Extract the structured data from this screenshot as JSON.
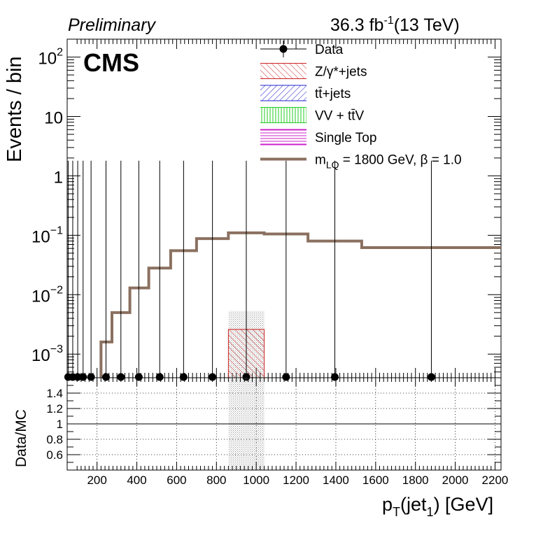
{
  "header": {
    "preliminary": "Preliminary",
    "lumi": "36.3 fb",
    "lumi_exp": "-1",
    "energy": "(13 TeV)",
    "cms": "CMS"
  },
  "chart_data": {
    "type": "histogram",
    "ylabel": "Events / bin",
    "ratio_ylabel": "Data/MC",
    "xlabel_parts": {
      "p": "p",
      "p_sub": "T",
      "open": "(jet",
      "jet_sub": "1",
      "close": ") [GeV]"
    },
    "xlim": [
      50,
      2230
    ],
    "ylim": [
      0.0004,
      200
    ],
    "yscale": "log",
    "ratio_ylim": [
      0.4,
      1.6
    ],
    "x_ticks": [
      200,
      400,
      600,
      800,
      1000,
      1200,
      1400,
      1600,
      1800,
      2000,
      2200
    ],
    "ratio_ticks": [
      0.6,
      0.8,
      1,
      1.2,
      1.4
    ],
    "ratio_tick_labels": [
      "0.6",
      "0.8",
      "1",
      "1.2",
      "1.4"
    ],
    "y_tick_labels": [
      {
        "value": 100,
        "base": "10",
        "exp": "2"
      },
      {
        "value": 10,
        "base": "10",
        "exp": ""
      },
      {
        "value": 1,
        "base": "1",
        "exp": ""
      },
      {
        "value": 0.1,
        "base": "10",
        "exp": "−1"
      },
      {
        "value": 0.01,
        "base": "10",
        "exp": "−2"
      },
      {
        "value": 0.001,
        "base": "10",
        "exp": "−3"
      }
    ],
    "legend": {
      "placement": "top-right",
      "entries": [
        {
          "label": "Data",
          "style": "marker"
        },
        {
          "label": "Z/γ*+jets",
          "style": "hatch",
          "color": "#cc2222"
        },
        {
          "label": "tt̄+jets",
          "style": "hatch",
          "color": "#2222cc"
        },
        {
          "label": "VV + tt̄V",
          "style": "hatch",
          "color": "#22cc22"
        },
        {
          "label": "Single Top",
          "style": "hatch",
          "color": "#cc22cc"
        },
        {
          "label": "m",
          "label_sub": "LQ",
          "label_rest": " = 1800 GeV,  β = 1.0",
          "style": "line",
          "color": "#8b7060"
        }
      ]
    },
    "signal": {
      "name": "m_LQ = 1800 GeV, β = 1.0",
      "color": "#8b7060",
      "bins": [
        {
          "x0": 220,
          "x1": 275,
          "y": 0.0016
        },
        {
          "x0": 275,
          "x1": 365,
          "y": 0.005
        },
        {
          "x0": 365,
          "x1": 460,
          "y": 0.013
        },
        {
          "x0": 460,
          "x1": 570,
          "y": 0.028
        },
        {
          "x0": 570,
          "x1": 700,
          "y": 0.055
        },
        {
          "x0": 700,
          "x1": 860,
          "y": 0.088
        },
        {
          "x0": 860,
          "x1": 1040,
          "y": 0.11
        },
        {
          "x0": 1040,
          "x1": 1260,
          "y": 0.105
        },
        {
          "x0": 1260,
          "x1": 1530,
          "y": 0.08
        },
        {
          "x0": 1530,
          "x1": 2230,
          "y": 0.062
        }
      ]
    },
    "background": {
      "name": "Z/γ*+jets",
      "color": "#cc2222",
      "bins": [
        {
          "x0": 860,
          "x1": 1040,
          "y": 0.0026,
          "unc_hi": 0.0053
        }
      ]
    },
    "data": {
      "points": [
        {
          "x": 55,
          "y": 0
        },
        {
          "x": 78,
          "y": 0
        },
        {
          "x": 103,
          "y": 0
        },
        {
          "x": 130,
          "y": 0
        },
        {
          "x": 170,
          "y": 0
        },
        {
          "x": 245,
          "y": 0
        },
        {
          "x": 320,
          "y": 0
        },
        {
          "x": 410,
          "y": 0
        },
        {
          "x": 515,
          "y": 0
        },
        {
          "x": 635,
          "y": 0
        },
        {
          "x": 780,
          "y": 0
        },
        {
          "x": 950,
          "y": 0
        },
        {
          "x": 1150,
          "y": 0
        },
        {
          "x": 1395,
          "y": 0
        },
        {
          "x": 1880,
          "y": 0
        }
      ],
      "error_hi": 1.8
    },
    "ratio": {
      "line": 1,
      "unc_band": {
        "x0": 860,
        "x1": 1040
      }
    },
    "grid": true
  }
}
